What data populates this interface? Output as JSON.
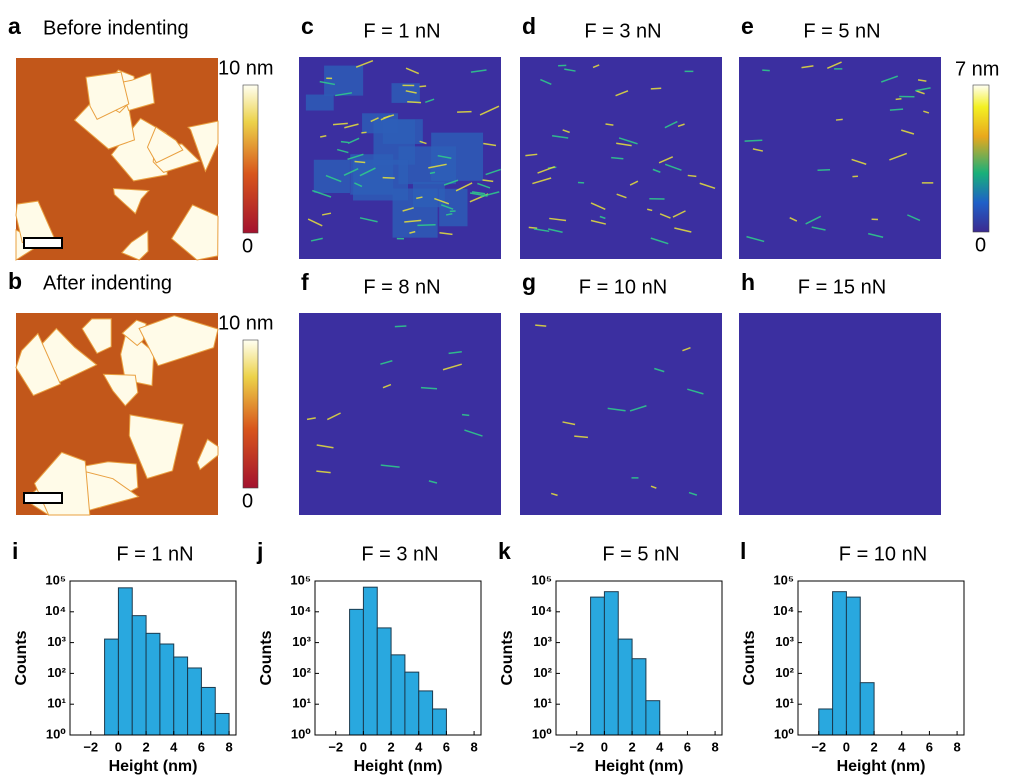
{
  "panels": [
    {
      "letter": "a",
      "title": "Before indenting",
      "colorbar": {
        "max_label": "10 nm",
        "min_label": "0"
      }
    },
    {
      "letter": "b",
      "title": "After indenting",
      "colorbar": {
        "max_label": "10 nm",
        "min_label": "0"
      }
    },
    {
      "letter": "c",
      "title": "F = 1 nN"
    },
    {
      "letter": "d",
      "title": "F = 3 nN"
    },
    {
      "letter": "e",
      "title": "F = 5 nN"
    },
    {
      "letter": "f",
      "title": "F = 8 nN"
    },
    {
      "letter": "g",
      "title": "F = 10 nN"
    },
    {
      "letter": "h",
      "title": "F = 15 nN"
    }
  ],
  "force_colorbar": {
    "max_label": "7 nm",
    "min_label": "0"
  },
  "chart_data": [
    {
      "type": "histogram",
      "letter": "i",
      "title": "F = 1 nN",
      "bins": [
        -1,
        0,
        1,
        2,
        3,
        4,
        5,
        6,
        7,
        8
      ],
      "values": [
        1300,
        60000,
        7500,
        2000,
        900,
        340,
        150,
        35,
        5
      ],
      "color": "#29a8df",
      "xlim": [
        -3.5,
        8.5
      ],
      "xticks": [
        {
          "value": -2,
          "label": "−2"
        },
        0,
        2,
        4,
        6,
        8
      ],
      "ylim": [
        1,
        100000
      ],
      "yscale": "log",
      "yticks": [
        {
          "value": 1,
          "label": "10⁰"
        },
        {
          "value": 10,
          "label": "10¹"
        },
        {
          "value": 100,
          "label": "10²"
        },
        {
          "value": 1000,
          "label": "10³"
        },
        {
          "value": 10000,
          "label": "10⁴"
        },
        {
          "value": 100000,
          "label": "10⁵"
        }
      ],
      "xlabel": "Height (nm)",
      "ylabel": "Counts"
    },
    {
      "type": "histogram",
      "letter": "j",
      "title": "F = 3 nN",
      "bins": [
        -1,
        0,
        1,
        2,
        3,
        4,
        5,
        6,
        7
      ],
      "values": [
        12000,
        63000,
        3000,
        400,
        110,
        27,
        7,
        1
      ],
      "color": "#29a8df",
      "xlim": [
        -3.5,
        8.5
      ],
      "xticks": [
        {
          "value": -2,
          "label": "−2"
        },
        0,
        2,
        4,
        6,
        8
      ],
      "ylim": [
        1,
        100000
      ],
      "yscale": "log",
      "yticks": [
        {
          "value": 1,
          "label": "10⁰"
        },
        {
          "value": 10,
          "label": "10¹"
        },
        {
          "value": 100,
          "label": "10²"
        },
        {
          "value": 1000,
          "label": "10³"
        },
        {
          "value": 10000,
          "label": "10⁴"
        },
        {
          "value": 100000,
          "label": "10⁵"
        }
      ],
      "xlabel": "Height (nm)",
      "ylabel": "Counts"
    },
    {
      "type": "histogram",
      "letter": "k",
      "title": "F = 5 nN",
      "bins": [
        -1,
        0,
        1,
        2,
        3,
        4
      ],
      "values": [
        30000,
        45000,
        1300,
        300,
        13
      ],
      "color": "#29a8df",
      "xlim": [
        -3.5,
        8.5
      ],
      "xticks": [
        {
          "value": -2,
          "label": "−2"
        },
        0,
        2,
        4,
        6,
        8
      ],
      "ylim": [
        1,
        100000
      ],
      "yscale": "log",
      "yticks": [
        {
          "value": 1,
          "label": "10⁰"
        },
        {
          "value": 10,
          "label": "10¹"
        },
        {
          "value": 100,
          "label": "10²"
        },
        {
          "value": 1000,
          "label": "10³"
        },
        {
          "value": 10000,
          "label": "10⁴"
        },
        {
          "value": 100000,
          "label": "10⁵"
        }
      ],
      "xlabel": "Height (nm)",
      "ylabel": "Counts"
    },
    {
      "type": "histogram",
      "letter": "l",
      "title": "F = 10 nN",
      "bins": [
        -2,
        -1,
        0,
        1,
        2
      ],
      "values": [
        7,
        45000,
        30000,
        50
      ],
      "color": "#29a8df",
      "xlim": [
        -3.5,
        8.5
      ],
      "xticks": [
        {
          "value": -2,
          "label": "−2"
        },
        0,
        2,
        4,
        6,
        8
      ],
      "ylim": [
        1,
        100000
      ],
      "yscale": "log",
      "yticks": [
        {
          "value": 1,
          "label": "10⁰"
        },
        {
          "value": 10,
          "label": "10¹"
        },
        {
          "value": 100,
          "label": "10²"
        },
        {
          "value": 1000,
          "label": "10³"
        },
        {
          "value": 10000,
          "label": "10⁴"
        },
        {
          "value": 100000,
          "label": "10⁵"
        }
      ],
      "xlabel": "Height (nm)",
      "ylabel": "Counts"
    }
  ]
}
